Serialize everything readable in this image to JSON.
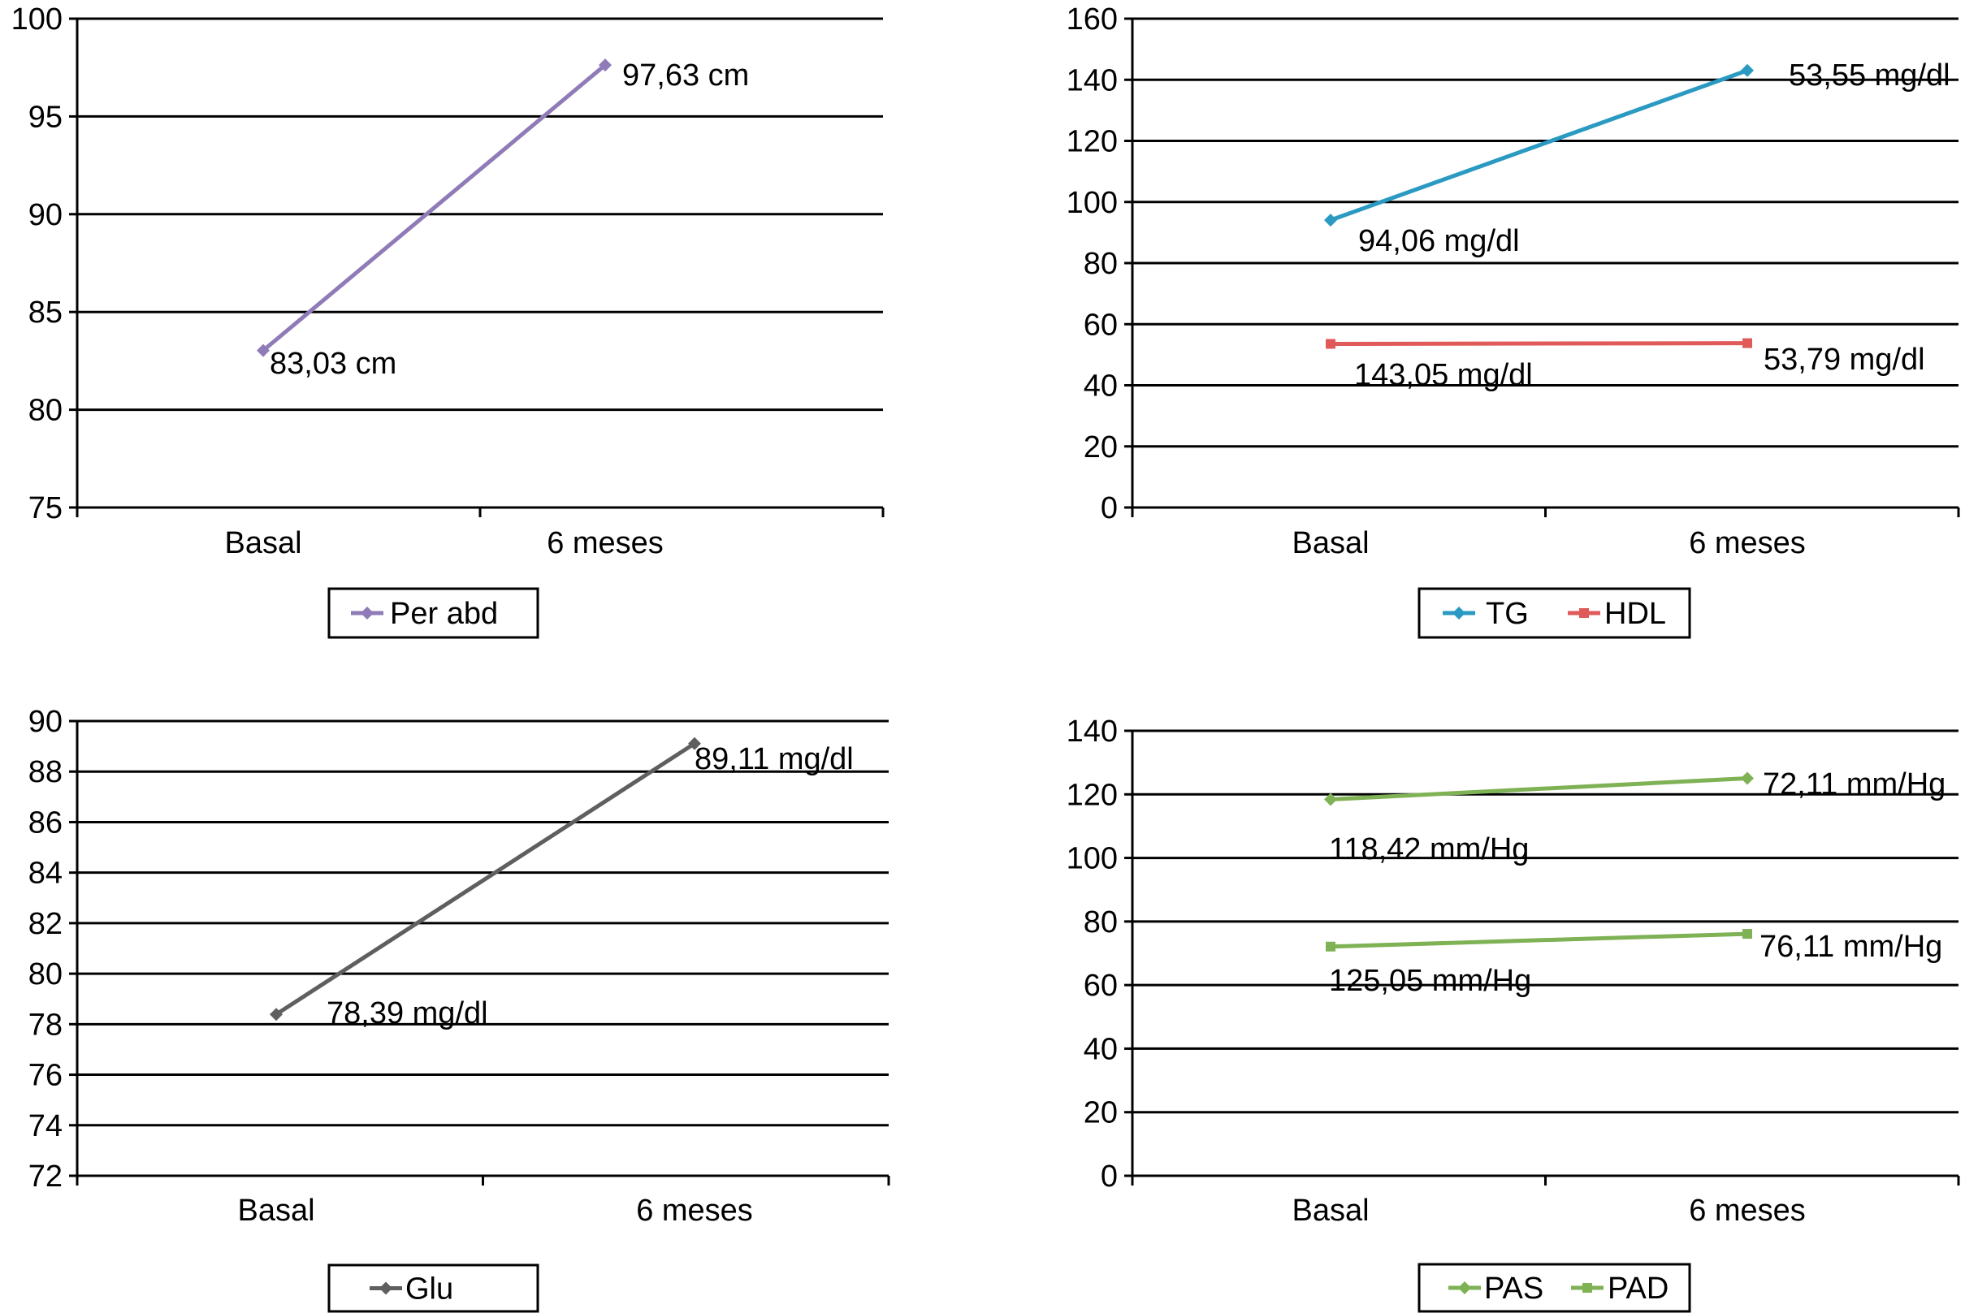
{
  "chart_data": [
    {
      "type": "line",
      "categories": [
        "Basal",
        "6 meses"
      ],
      "ylim": [
        75,
        100
      ],
      "yticks": [
        75,
        80,
        85,
        90,
        95,
        100
      ],
      "grid": true,
      "legend_position": "bottom",
      "series": [
        {
          "name": "Per abd",
          "color": "#8f7bb8",
          "marker": "diamond",
          "values": [
            83.03,
            97.63
          ],
          "labels": [
            "83,03 cm",
            "97,63 cm"
          ]
        }
      ]
    },
    {
      "type": "line",
      "categories": [
        "Basal",
        "6 meses"
      ],
      "ylim": [
        0,
        160
      ],
      "yticks": [
        0,
        20,
        40,
        60,
        80,
        100,
        120,
        140,
        160
      ],
      "grid": true,
      "legend_position": "bottom",
      "series": [
        {
          "name": "TG",
          "color": "#2a9ac2",
          "marker": "diamond",
          "values": [
            94.06,
            143.05
          ],
          "labels": [
            "94,06 mg/dl",
            "143,05 mg/dl"
          ]
        },
        {
          "name": "HDL",
          "color": "#e05a5a",
          "marker": "square",
          "values": [
            53.55,
            53.79
          ],
          "labels": [
            "53,55 mg/dl",
            "53,79 mg/dl"
          ]
        }
      ]
    },
    {
      "type": "line",
      "categories": [
        "Basal",
        "6 meses"
      ],
      "ylim": [
        72,
        90
      ],
      "yticks": [
        72,
        74,
        76,
        78,
        80,
        82,
        84,
        86,
        88,
        90
      ],
      "grid": true,
      "legend_position": "bottom",
      "series": [
        {
          "name": "Glu",
          "color": "#5f5f5f",
          "marker": "diamond",
          "values": [
            78.39,
            89.11
          ],
          "labels": [
            "78,39 mg/dl",
            "89,11 mg/dl"
          ]
        }
      ]
    },
    {
      "type": "line",
      "categories": [
        "Basal",
        "6 meses"
      ],
      "ylim": [
        0,
        140
      ],
      "yticks": [
        0,
        20,
        40,
        60,
        80,
        100,
        120,
        140
      ],
      "grid": true,
      "legend_position": "bottom",
      "series": [
        {
          "name": "PAS",
          "color": "#7fb155",
          "marker": "diamond",
          "values": [
            118.42,
            125.05
          ],
          "labels": [
            "118,42 mm/Hg",
            "125,05 mm/Hg"
          ]
        },
        {
          "name": "PAD",
          "color": "#7fb155",
          "marker": "square",
          "values": [
            72.11,
            76.11
          ],
          "labels": [
            "72,11 mm/Hg",
            "76,11 mm/Hg"
          ]
        }
      ]
    }
  ]
}
